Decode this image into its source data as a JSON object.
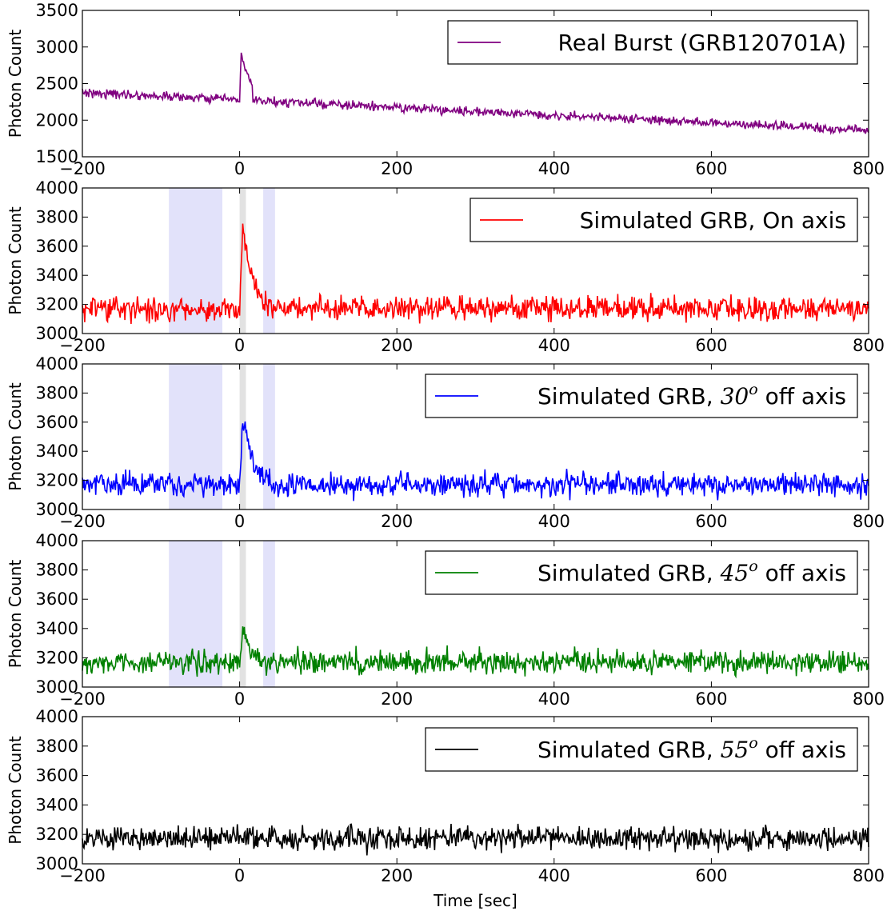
{
  "chart_data": [
    {
      "type": "line",
      "xlim": [
        -200,
        800
      ],
      "ylim": [
        1500,
        3500
      ],
      "x_ticks": [
        "-200",
        "0",
        "200",
        "400",
        "600",
        "800"
      ],
      "y_ticks": [
        "1500",
        "2000",
        "2500",
        "3000",
        "3500"
      ],
      "ylabel": "Photon Count",
      "xlabel": "",
      "legend_placement": "top-right",
      "series": [
        {
          "name": "Real Burst (GRB120701A)",
          "color": "#800080",
          "background": {
            "start": 2380,
            "end": 1860
          },
          "noise": 30,
          "peak": {
            "t0": 0,
            "rise": 2,
            "decay": 12,
            "amplitude": 650,
            "end": 16
          },
          "spike": {
            "t": 92,
            "value": 2230
          }
        }
      ],
      "shaded_regions": []
    },
    {
      "type": "line",
      "xlim": [
        -200,
        800
      ],
      "ylim": [
        3000,
        4000
      ],
      "x_ticks": [
        "-200",
        "0",
        "200",
        "400",
        "600",
        "800"
      ],
      "y_ticks": [
        "3000",
        "3200",
        "3400",
        "3600",
        "3800",
        "4000"
      ],
      "ylabel": "Photon Count",
      "xlabel": "",
      "legend_placement": "top-right",
      "series": [
        {
          "name": "Simulated GRB, On axis",
          "color": "#ff0000",
          "background": {
            "start": 3170,
            "end": 3170
          },
          "noise": 40,
          "peak": {
            "t0": 0,
            "rise": 4,
            "decay": 12,
            "amplitude": 600,
            "end": 40
          }
        }
      ],
      "shaded_regions": [
        {
          "x0": -90,
          "x1": -22,
          "color": "#e2e2fa"
        },
        {
          "x0": 0,
          "x1": 8,
          "color": "#e2e2e2"
        },
        {
          "x0": 30,
          "x1": 45,
          "color": "#e2e2fa"
        }
      ]
    },
    {
      "type": "line",
      "xlim": [
        -200,
        800
      ],
      "ylim": [
        3000,
        4000
      ],
      "x_ticks": [
        "-200",
        "0",
        "200",
        "400",
        "600",
        "800"
      ],
      "y_ticks": [
        "3000",
        "3200",
        "3400",
        "3600",
        "3800",
        "4000"
      ],
      "ylabel": "Photon Count",
      "xlabel": "",
      "legend_placement": "top-right",
      "series": [
        {
          "name": "Simulated GRB, 30o off axis",
          "color": "#0000ff",
          "legend_prefix": "Simulated GRB, ",
          "legend_math": "30",
          "legend_sup": "o",
          "legend_suffix": "off axis",
          "background": {
            "start": 3170,
            "end": 3170
          },
          "noise": 40,
          "peak": {
            "t0": 0,
            "rise": 4,
            "decay": 12,
            "amplitude": 470,
            "end": 40
          }
        }
      ],
      "shaded_regions": [
        {
          "x0": -90,
          "x1": -22,
          "color": "#e2e2fa"
        },
        {
          "x0": 0,
          "x1": 8,
          "color": "#e2e2e2"
        },
        {
          "x0": 30,
          "x1": 45,
          "color": "#e2e2fa"
        }
      ]
    },
    {
      "type": "line",
      "xlim": [
        -200,
        800
      ],
      "ylim": [
        3000,
        4000
      ],
      "x_ticks": [
        "-200",
        "0",
        "200",
        "400",
        "600",
        "800"
      ],
      "y_ticks": [
        "3000",
        "3200",
        "3400",
        "3600",
        "3800",
        "4000"
      ],
      "ylabel": "Photon Count",
      "xlabel": "",
      "legend_placement": "top-right",
      "series": [
        {
          "name": "Simulated GRB, 45o off axis",
          "color": "#008000",
          "legend_prefix": "Simulated GRB, ",
          "legend_math": "45",
          "legend_sup": "o",
          "legend_suffix": "off axis",
          "background": {
            "start": 3170,
            "end": 3170
          },
          "noise": 40,
          "peak": {
            "t0": 0,
            "rise": 4,
            "decay": 10,
            "amplitude": 200,
            "end": 30
          }
        }
      ],
      "shaded_regions": [
        {
          "x0": -90,
          "x1": -22,
          "color": "#e2e2fa"
        },
        {
          "x0": 0,
          "x1": 8,
          "color": "#e2e2e2"
        },
        {
          "x0": 30,
          "x1": 45,
          "color": "#e2e2fa"
        }
      ]
    },
    {
      "type": "line",
      "xlim": [
        -200,
        800
      ],
      "ylim": [
        3000,
        4000
      ],
      "x_ticks": [
        "-200",
        "0",
        "200",
        "400",
        "600",
        "800"
      ],
      "y_ticks": [
        "3000",
        "3200",
        "3400",
        "3600",
        "3800",
        "4000"
      ],
      "ylabel": "Photon Count",
      "xlabel": "Time [sec]",
      "legend_placement": "top-right",
      "series": [
        {
          "name": "Simulated GRB, 55o off axis",
          "color": "#000000",
          "legend_prefix": "Simulated GRB, ",
          "legend_math": "55",
          "legend_sup": "o",
          "legend_suffix": "off axis",
          "background": {
            "start": 3170,
            "end": 3170
          },
          "noise": 40
        }
      ],
      "shaded_regions": []
    }
  ]
}
